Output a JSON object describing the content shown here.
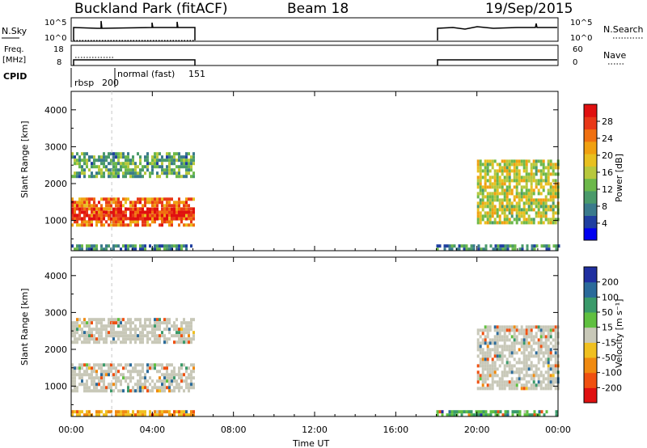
{
  "header": {
    "station": "Buckland Park (fitACF)",
    "beam": "Beam 18",
    "date": "19/Sep/2015"
  },
  "nsky_panel": {
    "left_label": "N.Sky",
    "right_label": "N.Search",
    "left_ticks": [
      "10^5",
      "10^0"
    ],
    "right_ticks": [
      "10^5",
      "10^0"
    ]
  },
  "freq_panel": {
    "left_label_1": "Freq.",
    "left_label_2": "[MHz]",
    "right_label": "Nave",
    "left_ticks": [
      "18",
      "8"
    ],
    "right_ticks": [
      "60",
      "0"
    ]
  },
  "cpid_panel": {
    "label": "CPID",
    "modes": [
      {
        "name": "rbsp",
        "id": "200",
        "start_hour": 0.0
      },
      {
        "name": "normal (fast)",
        "id": "151",
        "start_hour": 2.0
      }
    ]
  },
  "power_colorbar": {
    "label": "Power [dB]",
    "ticks": [
      "4",
      "8",
      "12",
      "16",
      "20",
      "24",
      "28"
    ],
    "colors": [
      "#0000f0",
      "#1f3fa0",
      "#3a7a8c",
      "#4a9a6a",
      "#6cb84a",
      "#b8c83c",
      "#e8c020",
      "#f0a010",
      "#f07010",
      "#e83818",
      "#e01010"
    ]
  },
  "velocity_colorbar": {
    "label": "Velocity [m s⁻¹]",
    "ticks": [
      "-200",
      "-100",
      "-50",
      "-15",
      "15",
      "50",
      "100",
      "200"
    ],
    "colors": [
      "#e01010",
      "#f05010",
      "#f08a10",
      "#f0c020",
      "#c8c8b8",
      "#60c040",
      "#3a9a6a",
      "#2a6a9a",
      "#1f2fa0"
    ]
  },
  "chart_data": [
    {
      "type": "heatmap",
      "name": "power",
      "xlabel": "",
      "ylabel": "Slant Range [km]",
      "xlim": [
        0,
        24
      ],
      "ylim": [
        180,
        4500
      ],
      "x_ticks": [
        "00:00",
        "04:00",
        "08:00",
        "12:00",
        "16:00",
        "20:00",
        "00:00"
      ],
      "y_ticks": [
        1000,
        2000,
        3000,
        4000
      ],
      "data_gap_hours": [
        6.0,
        18.0
      ],
      "regions": [
        {
          "time": [
            0.0,
            6.0
          ],
          "range": [
            860,
            1620
          ],
          "power_db": 24
        },
        {
          "time": [
            0.0,
            6.0
          ],
          "range": [
            1040,
            1350
          ],
          "power_db": 29
        },
        {
          "time": [
            0.0,
            6.0
          ],
          "range": [
            2150,
            2850
          ],
          "power_db": 12
        },
        {
          "time": [
            0.0,
            6.0
          ],
          "range": [
            200,
            350
          ],
          "power_db": 10
        },
        {
          "time": [
            18.0,
            24.0
          ],
          "range": [
            200,
            350
          ],
          "power_db": 10
        },
        {
          "time": [
            20.0,
            24.0
          ],
          "range": [
            950,
            2650
          ],
          "power_db": 17
        }
      ]
    },
    {
      "type": "heatmap",
      "name": "velocity",
      "xlabel": "Time UT",
      "ylabel": "Slant Range [km]",
      "xlim": [
        0,
        24
      ],
      "ylim": [
        180,
        4500
      ],
      "x_ticks": [
        "00:00",
        "04:00",
        "08:00",
        "12:00",
        "16:00",
        "20:00",
        "00:00"
      ],
      "y_ticks": [
        1000,
        2000,
        3000,
        4000
      ],
      "data_gap_hours": [
        6.0,
        18.0
      ],
      "regions": [
        {
          "time": [
            0.0,
            6.0
          ],
          "range": [
            860,
            1620
          ],
          "velocity": 0
        },
        {
          "time": [
            0.0,
            6.0
          ],
          "range": [
            2150,
            2850
          ],
          "velocity": 0
        },
        {
          "time": [
            0.0,
            6.0
          ],
          "range": [
            200,
            350
          ],
          "velocity": -30
        },
        {
          "time": [
            18.0,
            24.0
          ],
          "range": [
            200,
            350
          ],
          "velocity": 30
        },
        {
          "time": [
            20.0,
            24.0
          ],
          "range": [
            950,
            2650
          ],
          "velocity": 0
        }
      ]
    }
  ]
}
